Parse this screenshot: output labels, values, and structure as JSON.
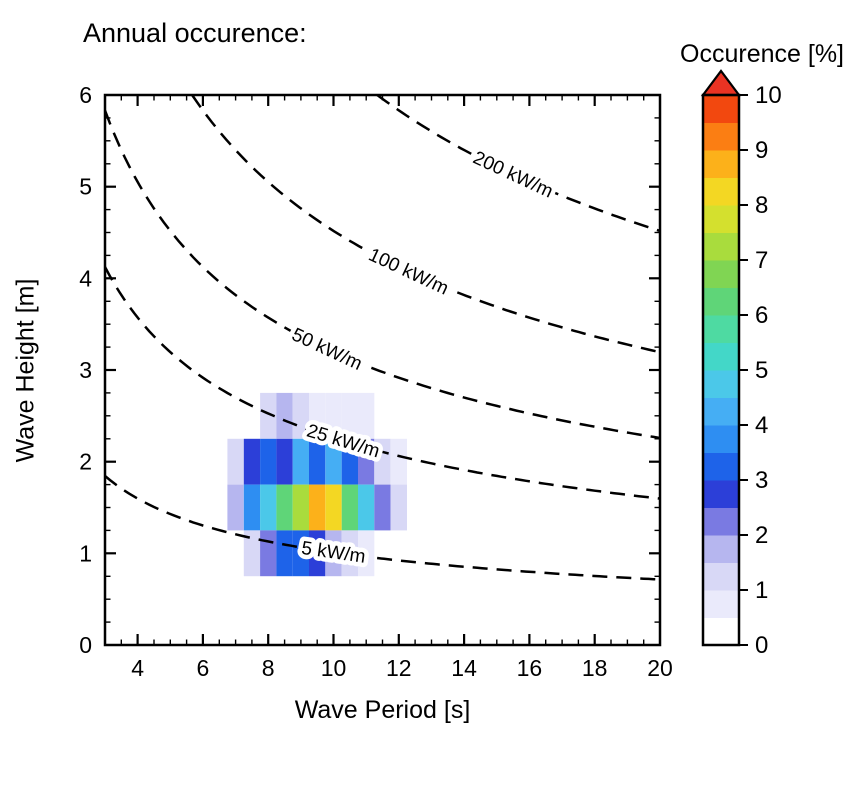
{
  "figure": {
    "title": "Annual occurence:"
  },
  "axes": {
    "x": {
      "label": "Wave Period [s]",
      "min": 3,
      "max": 20,
      "major_ticks": [
        4,
        6,
        8,
        10,
        12,
        14,
        16,
        18,
        20
      ],
      "minor_step": 0.5
    },
    "y": {
      "label": "Wave Height [m]",
      "min": 0,
      "max": 6,
      "major_ticks": [
        0,
        1,
        2,
        3,
        4,
        5,
        6
      ],
      "minor_step": 0.25
    }
  },
  "colorbar": {
    "title": "Occurence [%]",
    "min": 0,
    "max": 10,
    "tick_labels": [
      0,
      1,
      2,
      3,
      4,
      5,
      6,
      7,
      8,
      9,
      10
    ],
    "segment_step": 0.5,
    "colors": [
      "#ffffff",
      "#eaeafb",
      "#d8d8f6",
      "#b6b6ef",
      "#7a7ae2",
      "#2c3fd8",
      "#1e63e9",
      "#2e8ef2",
      "#45aef4",
      "#4bc8e9",
      "#43d7c8",
      "#4edaa2",
      "#5fd578",
      "#80d553",
      "#a9dc3d",
      "#d4e02e",
      "#f3d723",
      "#fcb11a",
      "#fb7e13",
      "#f2480f"
    ],
    "over_color": "#ea3323"
  },
  "chart_data": {
    "type": "heatmap",
    "title": "Annual occurence:",
    "xlabel": "Wave Period [s]",
    "ylabel": "Wave Height [m]",
    "xlim": [
      3,
      20
    ],
    "ylim": [
      0,
      6
    ],
    "colorbar_label": "Occurence [%]",
    "colorbar_range": [
      0,
      10
    ],
    "x_bin_centers": [
      7,
      7.5,
      8,
      8.5,
      9,
      9.5,
      10,
      10.5,
      11,
      11.5,
      12
    ],
    "x_bin_width": 0.5,
    "y_bin_centers": [
      2.5,
      2,
      1.5,
      1
    ],
    "y_bin_height": 0.5,
    "values_percent": [
      [
        0,
        0,
        1.3,
        1.8,
        1.3,
        0.7,
        0.9,
        0.7,
        0.6,
        0,
        0
      ],
      [
        1.4,
        2.7,
        3.2,
        2.6,
        4.1,
        3.1,
        4.2,
        3.2,
        2.3,
        1.4,
        0.8
      ],
      [
        1.6,
        3.6,
        4.8,
        6.2,
        7.4,
        8.7,
        8.1,
        6.4,
        4.7,
        2.4,
        1.1
      ],
      [
        0,
        1.0,
        2.3,
        3.1,
        3.0,
        2.6,
        1.9,
        1.2,
        0.7,
        0,
        0
      ]
    ],
    "contours": {
      "description": "Dashed wave-power contour lines P = coefficient * H^2 * T [kW/m]",
      "coefficient": 0.49,
      "levels": [
        {
          "power": 5,
          "label": "5 kW/m",
          "label_T": 10.0
        },
        {
          "power": 25,
          "label": "25 kW/m",
          "label_T": 10.3
        },
        {
          "power": 50,
          "label": "50 kW/m",
          "label_T": 9.8
        },
        {
          "power": 100,
          "label": "100 kW/m",
          "label_T": 12.3
        },
        {
          "power": 200,
          "label": "200 kW/m",
          "label_T": 15.5
        }
      ]
    }
  }
}
